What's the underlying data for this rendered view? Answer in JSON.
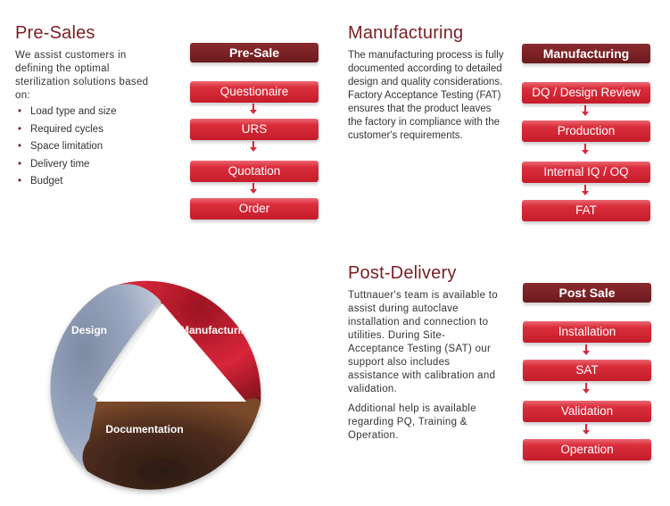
{
  "presales": {
    "title": "Pre-Sales",
    "intro": "We assist customers in defining the optimal sterilization solutions based on:",
    "bullets": [
      "Load type and size",
      "Required cycles",
      "Space limitation",
      "Delivery time",
      "Budget"
    ],
    "flow_header": "Pre-Sale",
    "flow_steps": [
      "Questionaire",
      "URS",
      "Quotation",
      "Order"
    ]
  },
  "manufacturing": {
    "title": "Manufacturing",
    "text": "The manufacturing process is fully documented according to detailed design and quality considerations. Factory Acceptance Testing (FAT) ensures that the product leaves the factory in compliance with the customer's requirements.",
    "flow_header": "Manufacturing",
    "flow_steps": [
      "DQ / Design Review",
      "Production",
      "Internal IQ / OQ",
      "FAT"
    ]
  },
  "postdelivery": {
    "title": "Post-Delivery",
    "text": "Tuttnauer's team is available to assist during autoclave installation and connection to utilities.  During Site-Acceptance Testing (SAT) our support also includes assistance with calibration and validation.",
    "text2": "Additional help is available regarding PQ, Training & Operation.",
    "flow_header": "Post Sale",
    "flow_steps": [
      "Installation",
      "SAT",
      "Validation",
      "Operation"
    ]
  },
  "cycle": {
    "labels": [
      "Design",
      "Manufacturing",
      "Documentation"
    ],
    "colors": {
      "design": "#8f9db8",
      "manufacturing": "#c41e2b",
      "documentation": "#4a2a1c"
    }
  }
}
